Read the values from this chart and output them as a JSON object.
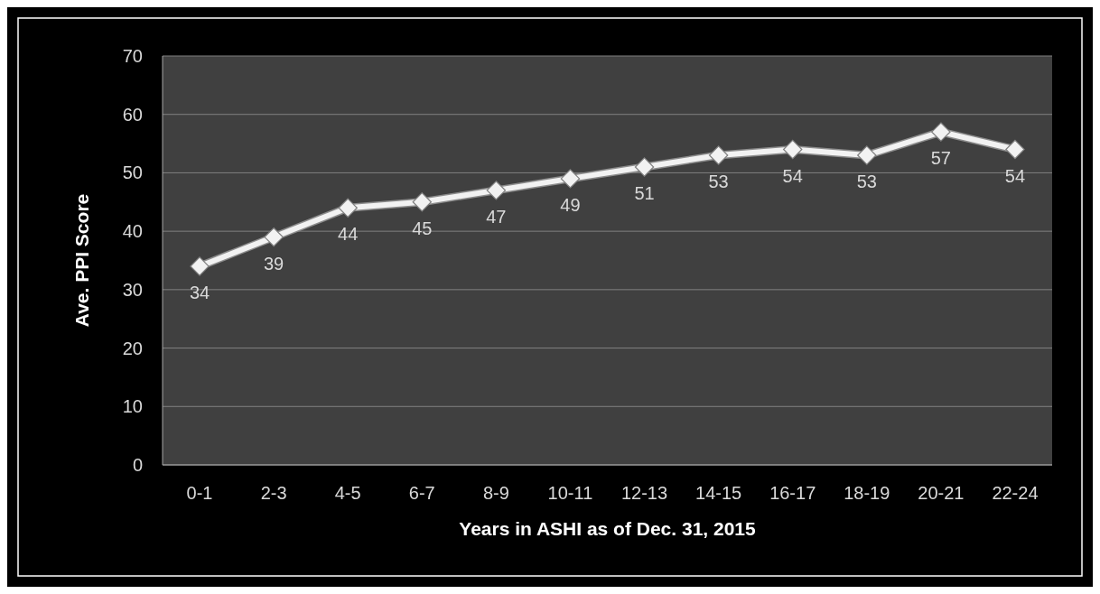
{
  "chart_data": {
    "type": "line",
    "xlabel": "Years in ASHI as of Dec. 31, 2015",
    "ylabel": "Ave. PPI Score",
    "categories": [
      "0-1",
      "2-3",
      "4-5",
      "6-7",
      "8-9",
      "10-11",
      "12-13",
      "14-15",
      "16-17",
      "18-19",
      "20-21",
      "22-24"
    ],
    "series": [
      {
        "color": "#f2f2f2",
        "values": [
          34,
          39,
          44,
          45,
          47,
          49,
          51,
          53,
          54,
          53,
          57,
          54
        ]
      }
    ],
    "ylim": [
      0,
      70
    ],
    "yticks": [
      0,
      10,
      20,
      30,
      40,
      50,
      60,
      70
    ],
    "grid": "y",
    "marker": "diamond",
    "line_style": "solid",
    "data_labels": true
  }
}
